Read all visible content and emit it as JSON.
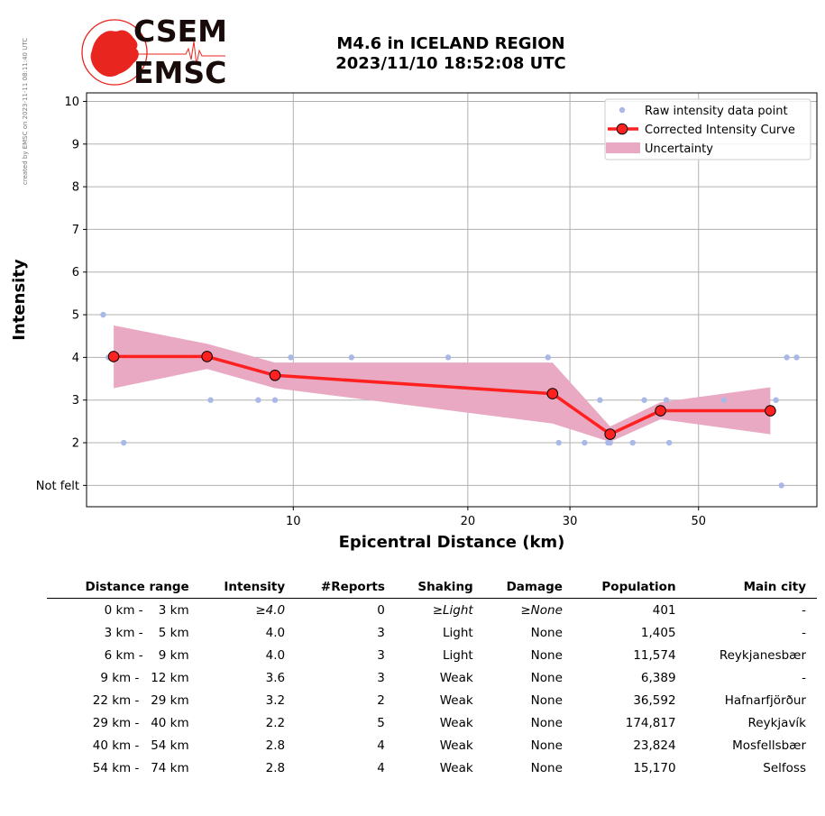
{
  "side_credit": "created by EMSC on 2023-11-11 08:11:40 UTC",
  "logo": {
    "line1": "CSEM",
    "line2": "EMSC",
    "red": "#e8261f",
    "dark": "#1a0b0b"
  },
  "title": {
    "line1": "M4.6 in ICELAND REGION",
    "line2": "2023/11/10 18:52:08 UTC"
  },
  "chart_data": {
    "type": "line",
    "xlabel": "Epicentral Distance (km)",
    "ylabel": "Intensity",
    "xscale": "log",
    "xticks": [
      10,
      20,
      30,
      50
    ],
    "xlim": [
      4.4,
      80
    ],
    "ylim": [
      0.5,
      10.2
    ],
    "yticks": [
      1,
      2,
      3,
      4,
      5,
      6,
      7,
      8,
      9,
      10
    ],
    "ytick_labels": [
      "Not felt",
      "2",
      "3",
      "4",
      "5",
      "6",
      "7",
      "8",
      "9",
      "10"
    ],
    "grid": true,
    "legend_position": "top-right",
    "legend": [
      "Raw intensity data point",
      "Corrected Intensity Curve",
      "Uncertainty"
    ],
    "colors": {
      "raw": "#aab8e8",
      "curve": "#ff2020",
      "marker_edge": "#000000",
      "band": "#e9a9c3"
    },
    "raw_points": [
      {
        "x": 4.7,
        "y": 5
      },
      {
        "x": 4.8,
        "y": 4
      },
      {
        "x": 5.1,
        "y": 2
      },
      {
        "x": 7.2,
        "y": 3
      },
      {
        "x": 8.7,
        "y": 3
      },
      {
        "x": 9.3,
        "y": 3
      },
      {
        "x": 9.9,
        "y": 4
      },
      {
        "x": 12.6,
        "y": 4
      },
      {
        "x": 18.5,
        "y": 4
      },
      {
        "x": 27.5,
        "y": 4
      },
      {
        "x": 28.7,
        "y": 2
      },
      {
        "x": 31.8,
        "y": 2
      },
      {
        "x": 33.8,
        "y": 3
      },
      {
        "x": 34.9,
        "y": 2
      },
      {
        "x": 35.2,
        "y": 2
      },
      {
        "x": 38.5,
        "y": 2
      },
      {
        "x": 40.3,
        "y": 3
      },
      {
        "x": 44.0,
        "y": 3
      },
      {
        "x": 44.5,
        "y": 2
      },
      {
        "x": 55.3,
        "y": 3
      },
      {
        "x": 68.0,
        "y": 3
      },
      {
        "x": 69.5,
        "y": 1
      },
      {
        "x": 71.0,
        "y": 4
      },
      {
        "x": 73.8,
        "y": 4
      }
    ],
    "series": [
      {
        "name": "Corrected Intensity Curve",
        "x": [
          4.9,
          7.1,
          9.3,
          28.0,
          35.2,
          43.0,
          66.5
        ],
        "y": [
          4.02,
          4.02,
          3.58,
          3.15,
          2.2,
          2.75,
          2.75
        ]
      }
    ],
    "uncertainty": {
      "x": [
        4.9,
        7.1,
        9.3,
        28.0,
        35.2,
        43.0,
        66.5
      ],
      "lower": [
        3.28,
        3.73,
        3.28,
        2.45,
        2.02,
        2.55,
        2.2
      ],
      "upper": [
        4.75,
        4.32,
        3.88,
        3.88,
        2.38,
        2.95,
        3.3
      ]
    }
  },
  "table": {
    "headers": [
      "Distance range",
      "Intensity",
      "#Reports",
      "Shaking",
      "Damage",
      "Population",
      "Main city"
    ],
    "rows": [
      {
        "range": "0 km -    3 km",
        "intensity": "≥4.0",
        "reports": "0",
        "shaking": "≥Light",
        "damage": "≥None",
        "population": "401",
        "city": "-",
        "italic": true
      },
      {
        "range": "3 km -    5 km",
        "intensity": "4.0",
        "reports": "3",
        "shaking": "Light",
        "damage": "None",
        "population": "1,405",
        "city": "-",
        "italic": false
      },
      {
        "range": "6 km -    9 km",
        "intensity": "4.0",
        "reports": "3",
        "shaking": "Light",
        "damage": "None",
        "population": "11,574",
        "city": "Reykjanesbær",
        "italic": false
      },
      {
        "range": "9 km -   12 km",
        "intensity": "3.6",
        "reports": "3",
        "shaking": "Weak",
        "damage": "None",
        "population": "6,389",
        "city": "-",
        "italic": false
      },
      {
        "range": "22 km -   29 km",
        "intensity": "3.2",
        "reports": "2",
        "shaking": "Weak",
        "damage": "None",
        "population": "36,592",
        "city": "Hafnarfjörður",
        "italic": false
      },
      {
        "range": "29 km -   40 km",
        "intensity": "2.2",
        "reports": "5",
        "shaking": "Weak",
        "damage": "None",
        "population": "174,817",
        "city": "Reykjavík",
        "italic": false
      },
      {
        "range": "40 km -   54 km",
        "intensity": "2.8",
        "reports": "4",
        "shaking": "Weak",
        "damage": "None",
        "population": "23,824",
        "city": "Mosfellsbær",
        "italic": false
      },
      {
        "range": "54 km -   74 km",
        "intensity": "2.8",
        "reports": "4",
        "shaking": "Weak",
        "damage": "None",
        "population": "15,170",
        "city": "Selfoss",
        "italic": false
      }
    ]
  }
}
